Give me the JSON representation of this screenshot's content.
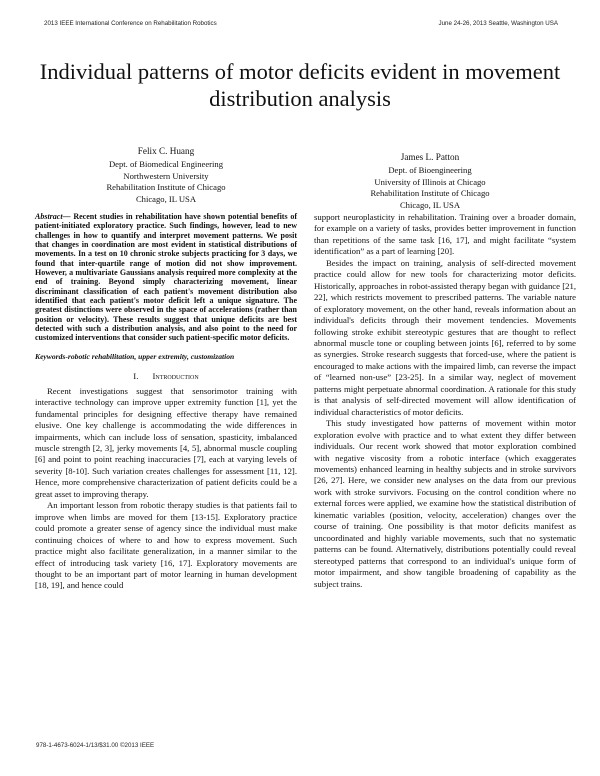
{
  "header": {
    "left": "2013 IEEE International Conference on Rehabilitation Robotics",
    "right": "June 24-26, 2013  Seattle, Washington USA"
  },
  "title": "Individual patterns of motor deficits evident in movement distribution analysis",
  "authors": [
    {
      "name": "Felix C. Huang",
      "lines": [
        "Dept. of Biomedical Engineering",
        "Northwestern University",
        "Rehabilitation Institute of Chicago",
        "Chicago, IL USA"
      ]
    },
    {
      "name": "James L. Patton",
      "lines": [
        "Dept. of Bioengineering",
        "University of Illinois at Chicago",
        "Rehabilitation Institute of Chicago",
        "Chicago, IL USA"
      ]
    }
  ],
  "abstract": {
    "label": "Abstract—",
    "text": " Recent studies in rehabilitation have shown potential benefits of patient-initiated exploratory practice. Such findings, however, lead to new challenges in how to quantify and interpret movement patterns. We posit that changes in coordination are most evident in statistical distributions of movements. In a test on 10 chronic stroke subjects practicing for 3 days, we found that inter-quartile range of motion did not show improvement. However, a multivariate Gaussians analysis required more complexity at the end of training. Beyond simply characterizing movement, linear discriminant classification of each patient's movement distribution also identified that each patient's motor deficit left a unique signature. The greatest distinctions were observed in the space of accelerations (rather than position or velocity). These results suggest that unique deficits are best detected with such a distribution analysis, and also point to the need for customized interventions that consider such patient-specific motor deficits."
  },
  "keywords": "Keywords-robotic rehabilitation, upper extremity, customization",
  "section": {
    "number": "I.",
    "title": "Introduction"
  },
  "left_paragraphs": [
    "Recent investigations suggest that sensorimotor training with interactive technology can improve upper extremity function [1], yet the fundamental principles for designing effective therapy have remained elusive. One key challenge is accommodating the wide differences in impairments, which can include loss of sensation, spasticity, imbalanced muscle strength [2, 3], jerky movements [4, 5], abnormal muscle coupling [6] and point to point reaching inaccuracies [7], each at varying levels of severity [8-10]. Such variation creates challenges for assessment [11, 12]. Hence, more comprehensive characterization of patient deficits could be a great asset to improving therapy.",
    "An important lesson from robotic therapy studies is that patients fail to improve when limbs are moved for them [13-15]. Exploratory practice could promote a greater sense of agency since the individual must make continuing choices of where to and how to express movement. Such practice might also facilitate generalization, in a manner similar to the effect of introducing task variety [16, 17]. Exploratory movements are thought to be an important part of motor learning in human development [18, 19], and hence could"
  ],
  "right_paragraphs": [
    "support neuroplasticity in rehabilitation. Training over a broader domain, for example on a variety of tasks, provides better improvement in function than repetitions of the same task [16, 17], and might facilitate “system identification” as a part of learning [20].",
    "Besides the impact on training, analysis of self-directed movement practice could allow for new tools for characterizing motor deficits. Historically, approaches in robot-assisted therapy began with guidance [21, 22], which restricts movement to prescribed patterns. The variable nature of exploratory movement, on the other hand, reveals information about an individual's deficits through their movement tendencies. Movements following stroke exhibit stereotypic gestures that are thought to reflect abnormal muscle tone or coupling between joints [6], referred to by some as synergies. Stroke research suggests that forced-use, where the patient is encouraged to make actions with the impaired limb, can reverse the impact of “learned non-use” [23-25]. In a similar way, neglect of movement patterns might perpetuate abnormal coordination. A rationale for this study is that analysis of self-directed movement will allow identification of individual characteristics of motor deficits.",
    "This study investigated how patterns of movement within motor exploration evolve with practice and to what extent they differ between individuals. Our recent work showed that motor exploration combined with negative viscosity from a robotic interface (which exaggerates movements) enhanced learning in healthy subjects and in stroke survivors [26, 27]. Here, we consider new analyses on the data from our previous work with stroke survivors. Focusing on the control condition where no external forces were applied, we examine how the statistical distribution of kinematic variables (position, velocity, acceleration) changes over the course of training. One possibility is that motor deficits manifest as uncoordinated and highly variable movements, such that no systematic patterns can be found. Alternatively, distributions potentially could reveal stereotyped patterns that correspond to an individual's unique form of motor impairment, and show tangible broadening of capability as the subject trains."
  ],
  "footer": "978-1-4673-6024-1/13/$31.00 ©2013 IEEE"
}
